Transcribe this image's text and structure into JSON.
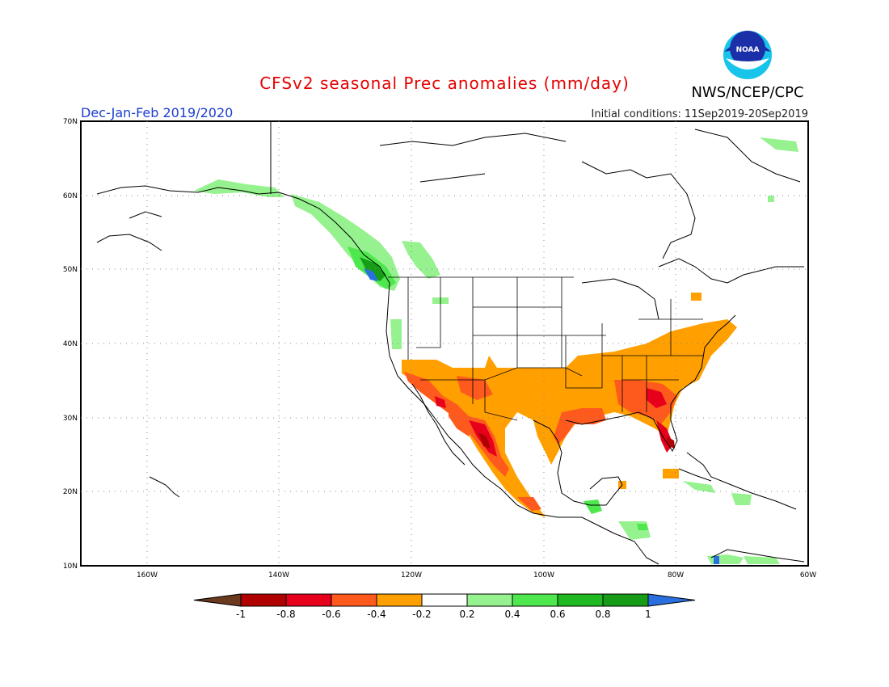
{
  "title": "CFSv2 seasonal Prec anomalies (mm/day)",
  "period": "Dec-Jan-Feb 2019/2020",
  "initial_conditions": "Initial conditions: 11Sep2019-20Sep2019",
  "agency": "NWS/NCEP/CPC",
  "logo_text": "NOAA",
  "lat_ticks": [
    "70N",
    "60N",
    "50N",
    "40N",
    "30N",
    "20N",
    "10N"
  ],
  "lon_ticks": [
    "160W",
    "140W",
    "120W",
    "100W",
    "80W",
    "60W"
  ],
  "colorbar": {
    "labels": [
      "-1",
      "-0.8",
      "-0.6",
      "-0.4",
      "-0.2",
      "0.2",
      "0.4",
      "0.6",
      "0.8",
      "1"
    ],
    "colors": [
      "#6b3a1e",
      "#b00000",
      "#e6001c",
      "#ff5a1e",
      "#ff9f00",
      "#ffffff",
      "#95f28e",
      "#4ee84e",
      "#21b921",
      "#169c16",
      "#2a6fe0"
    ]
  },
  "map_data": {
    "domain": {
      "lon": [
        -170,
        -60
      ],
      "lat": [
        10,
        70
      ]
    },
    "anomaly_regions": [
      {
        "label": "Alaska coast wet",
        "class": 0.3
      },
      {
        "label": "Pacific Northwest wet",
        "class": 0.6
      },
      {
        "label": "Vancouver Island max wet",
        "class": 1.0
      },
      {
        "label": "Southern tier dry",
        "class": -0.3
      },
      {
        "label": "Northwest Mexico dry",
        "class": -0.7
      },
      {
        "label": "Southeast US / Florida dry",
        "class": -0.6
      },
      {
        "label": "Caribbean / Central America wet",
        "class": 0.3
      }
    ]
  }
}
